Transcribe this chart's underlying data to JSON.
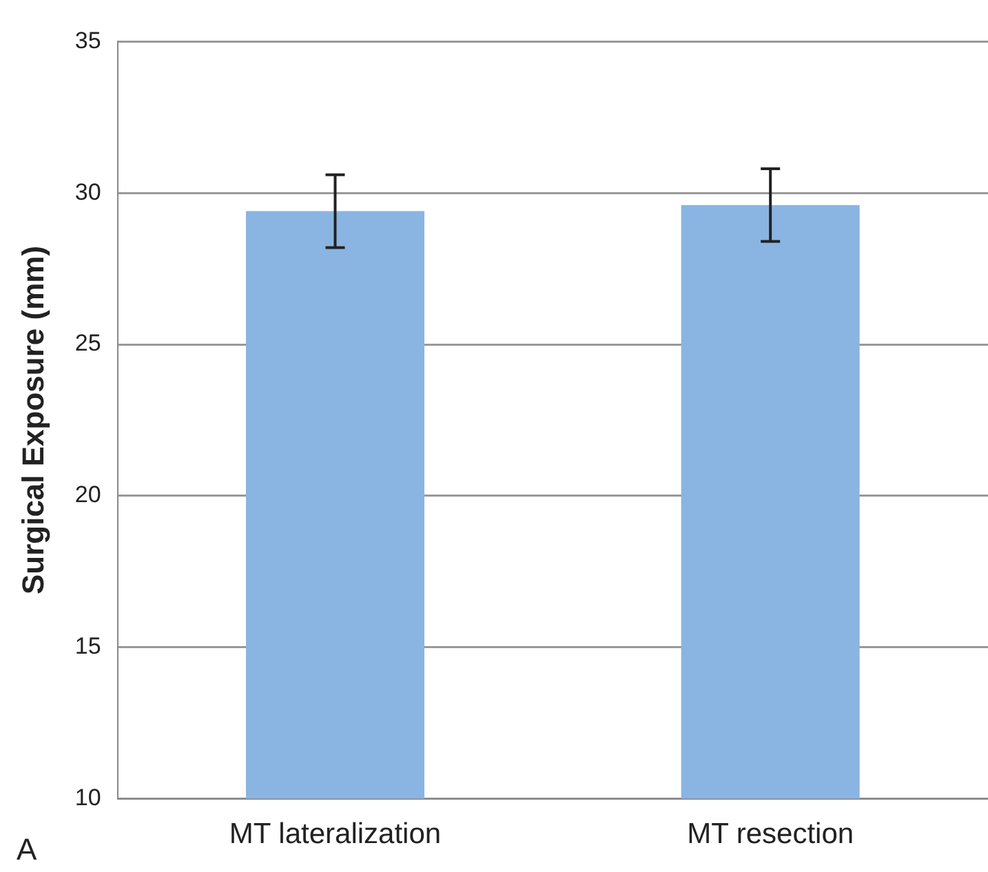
{
  "chart_data": {
    "type": "bar",
    "ylabel": "Surgical Exposure (mm)",
    "categories": [
      "MT lateralization",
      "MT resection"
    ],
    "values": [
      29.4,
      29.6
    ],
    "errors": [
      1.2,
      1.2
    ],
    "color": "#8ab4e2",
    "ylim": [
      10,
      35
    ],
    "yticks": [
      10,
      15,
      20,
      25,
      30,
      35
    ],
    "grid": "y",
    "annotations": [
      "A"
    ]
  }
}
